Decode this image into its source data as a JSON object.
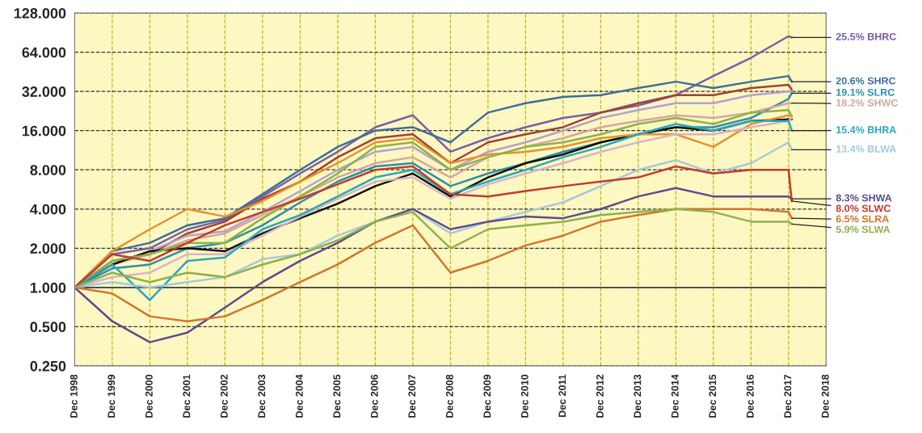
{
  "chart_data": {
    "type": "line",
    "x": [
      "1998-12",
      "1999-12",
      "2000-12",
      "2001-12",
      "2002-12",
      "2003-12",
      "2004-12",
      "2005-12",
      "2006-12",
      "2007-12",
      "2008-12",
      "2009-12",
      "2010-12",
      "2011-12",
      "2012-12",
      "2013-12",
      "2014-12",
      "2015-12",
      "2016-12",
      "2017-12",
      "2018-01"
    ],
    "series": [
      {
        "name": "25.5% BHRC",
        "color": "#7b5ea7",
        "values": [
          1,
          1.8,
          2.0,
          2.8,
          3.3,
          5.0,
          7.5,
          11,
          17,
          21,
          11,
          14,
          17,
          20,
          22,
          25,
          30,
          42,
          58,
          85,
          83
        ]
      },
      {
        "name": "20.6% SHRC",
        "color": "#3d6e9a",
        "values": [
          1,
          1.9,
          2.2,
          3.0,
          3.4,
          5.2,
          8,
          12,
          16,
          17,
          13,
          22,
          26,
          29,
          30,
          34,
          38,
          34,
          38,
          42,
          38
        ]
      },
      {
        "color": "#a0403a",
        "values": [
          1,
          1.6,
          1.8,
          2.6,
          3.2,
          4.8,
          6.5,
          10,
          14,
          15,
          9,
          13,
          15,
          17,
          22,
          26,
          30,
          30,
          34,
          36,
          33
        ]
      },
      {
        "color": "#b79fd0",
        "values": [
          1,
          1.5,
          1.9,
          2.5,
          2.7,
          3.8,
          5.5,
          8,
          11,
          12,
          8,
          11,
          13,
          16,
          20,
          23,
          26,
          26,
          30,
          32,
          32
        ]
      },
      {
        "name": "19.1% SLRC",
        "color": "#2b8fb0",
        "values": [
          1,
          1.4,
          1.5,
          2.0,
          2.2,
          3.0,
          4.5,
          6.5,
          8.5,
          9,
          6,
          7.5,
          9,
          11,
          13,
          15,
          17,
          17,
          20,
          28,
          31
        ]
      },
      {
        "name": "18.2% SHWC",
        "color": "#d4a7a0",
        "values": [
          1,
          1.5,
          1.8,
          2.3,
          2.6,
          3.6,
          5,
          7,
          9,
          10,
          7,
          10,
          12,
          14,
          17,
          19,
          21,
          20,
          22,
          26,
          26
        ]
      },
      {
        "color": "#111111",
        "values": [
          1,
          1.5,
          1.9,
          2.0,
          1.9,
          2.6,
          3.4,
          4.4,
          6,
          7.5,
          5,
          7,
          9,
          10.5,
          13,
          15,
          17,
          16,
          19,
          19.5,
          19.5
        ]
      },
      {
        "color": "#e8902e",
        "values": [
          1,
          1.9,
          2.8,
          4,
          3.5,
          4.6,
          6.5,
          9,
          13,
          14,
          9,
          10.5,
          11,
          12,
          14,
          15,
          15,
          12,
          18,
          21,
          20.6
        ]
      },
      {
        "color": "#8ab34a",
        "values": [
          1,
          1.6,
          1.8,
          2.2,
          2.2,
          3.4,
          5,
          7.5,
          12,
          13,
          8,
          10,
          12,
          13,
          15,
          18,
          20,
          18,
          22,
          23,
          20.6
        ]
      },
      {
        "color": "#d8b4c8",
        "values": [
          1,
          1.2,
          1.3,
          1.8,
          1.8,
          2.5,
          3.5,
          4.8,
          6.5,
          7,
          4.8,
          6.2,
          7.5,
          9,
          11,
          13,
          15,
          15,
          17,
          19,
          20
        ]
      },
      {
        "name": "15.4% BHRA",
        "color": "#2aa7bf",
        "values": [
          1,
          1.5,
          0.8,
          1.6,
          1.7,
          2.8,
          3.6,
          5,
          7,
          8,
          5.2,
          6.5,
          8,
          10,
          12,
          15,
          18,
          16,
          19,
          19,
          16
        ]
      },
      {
        "name": "13.4% BLWA",
        "color": "#a3cadb",
        "values": [
          1,
          1.1,
          1.0,
          1.1,
          1.2,
          1.65,
          1.8,
          2.5,
          3.2,
          4,
          2.6,
          3.2,
          3.8,
          4.5,
          6,
          8,
          9.5,
          7.5,
          9,
          13,
          11.4
        ]
      },
      {
        "name": "8.3% SHWA",
        "color": "#5b4b8c",
        "values": [
          1,
          0.55,
          0.38,
          0.45,
          0.7,
          1.1,
          1.6,
          2.2,
          3.2,
          4,
          2.8,
          3.2,
          3.5,
          3.4,
          4,
          5,
          5.8,
          5,
          5,
          5,
          4.8
        ]
      },
      {
        "name": "8.0% SLWC",
        "color": "#c23b2e",
        "values": [
          1,
          1.8,
          1.6,
          2.2,
          3.0,
          3.8,
          4.8,
          6.2,
          8,
          8.5,
          5.2,
          5,
          5.5,
          6,
          6.5,
          7,
          8.5,
          7.5,
          8,
          8,
          4.6
        ]
      },
      {
        "name": "6.5% SLRA",
        "color": "#d2762a",
        "values": [
          1,
          0.9,
          0.6,
          0.55,
          0.6,
          0.8,
          1.1,
          1.5,
          2.2,
          3,
          1.3,
          1.6,
          2.1,
          2.5,
          3.2,
          3.6,
          4,
          4,
          4,
          3.8,
          3.4
        ]
      },
      {
        "name": "5.9% SLWA",
        "color": "#8fb04e",
        "values": [
          1,
          1.3,
          1.1,
          1.3,
          1.2,
          1.5,
          1.8,
          2.3,
          3.2,
          3.8,
          2,
          2.8,
          3,
          3.2,
          3.6,
          3.8,
          4,
          3.8,
          3.2,
          3.2,
          3.07
        ]
      }
    ],
    "log": "y",
    "ylim": [
      0.25,
      128
    ],
    "yticks": [
      {
        "value": 0.25,
        "label": "0.250"
      },
      {
        "value": 0.5,
        "label": "0.500"
      },
      {
        "value": 1,
        "label": "1.000"
      },
      {
        "value": 2,
        "label": "2.000"
      },
      {
        "value": 4,
        "label": "4.000"
      },
      {
        "value": 8,
        "label": "8.000"
      },
      {
        "value": 16,
        "label": "16.000"
      },
      {
        "value": 32,
        "label": "32.000"
      },
      {
        "value": 64,
        "label": "64.000"
      },
      {
        "value": 128,
        "label": "128.000"
      }
    ],
    "xlim": [
      "1998-12",
      "2018-12"
    ],
    "xticks": [
      {
        "value": "1998-12",
        "label": "Dec 1998"
      },
      {
        "value": "1999-12",
        "label": "Dec 1999"
      },
      {
        "value": "2000-12",
        "label": "Dec 2000"
      },
      {
        "value": "2001-12",
        "label": "Dec 2001"
      },
      {
        "value": "2002-12",
        "label": "Dec 2002"
      },
      {
        "value": "2003-12",
        "label": "Dec 2003"
      },
      {
        "value": "2004-12",
        "label": "Dec 2004"
      },
      {
        "value": "2005-12",
        "label": "Dec 2005"
      },
      {
        "value": "2006-12",
        "label": "Dec 2006"
      },
      {
        "value": "2007-12",
        "label": "Dec 2007"
      },
      {
        "value": "2008-12",
        "label": "Dec 2008"
      },
      {
        "value": "2009-12",
        "label": "Dec 2009"
      },
      {
        "value": "2010-12",
        "label": "Dec 2010"
      },
      {
        "value": "2011-12",
        "label": "Dec 2011"
      },
      {
        "value": "2012-12",
        "label": "Dec 2012"
      },
      {
        "value": "2013-12",
        "label": "Dec 2013"
      },
      {
        "value": "2014-12",
        "label": "Dec 2014"
      },
      {
        "value": "2015-12",
        "label": "Dec 2015"
      },
      {
        "value": "2016-12",
        "label": "Dec 2016"
      },
      {
        "value": "2017-12",
        "label": "Dec 2017"
      },
      {
        "value": "2018-12",
        "label": "Dec 2018"
      }
    ],
    "ref_lines": [
      {
        "axis": "y",
        "value": 1,
        "color": "#444444",
        "line_style": "solid"
      }
    ],
    "grid": true,
    "marker": "none",
    "line_style": "solid",
    "legend": false
  }
}
